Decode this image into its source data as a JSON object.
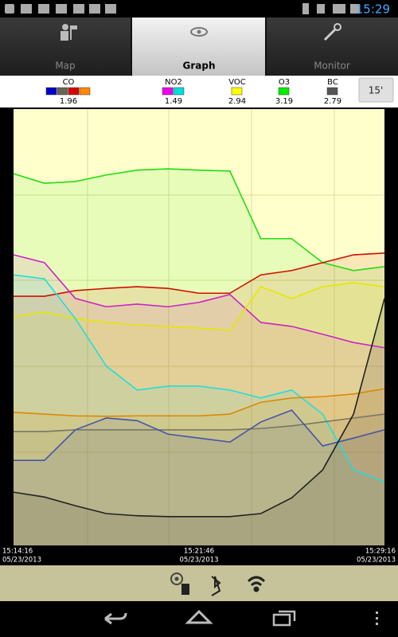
{
  "status_bar": {
    "time": "15:29"
  },
  "tabs": [
    {
      "label": "Map",
      "selected": false
    },
    {
      "label": "Graph",
      "selected": true
    },
    {
      "label": "Monitor",
      "selected": false
    }
  ],
  "legend": [
    {
      "name": "CO",
      "value": 1.96,
      "colors": [
        "#0000cc",
        "#666655",
        "#dd0000",
        "#ff8800"
      ]
    },
    {
      "name": "NO2",
      "value": 1.49,
      "colors": [
        "#ee00ee",
        "#00dddd"
      ]
    },
    {
      "name": "VOC",
      "value": 2.94,
      "colors": [
        "#ffff00"
      ]
    },
    {
      "name": "O3",
      "value": 3.19,
      "colors": [
        "#00ee00"
      ]
    },
    {
      "name": "BC",
      "value": 2.79,
      "colors": [
        "#555555"
      ]
    }
  ],
  "window_button": "15'",
  "chart_data": {
    "type": "line",
    "ylim": [
      0,
      100
    ],
    "x_labels": [
      {
        "time": "15:14:16",
        "date": "05/23/2013"
      },
      {
        "time": "15:21:46",
        "date": "05/23/2013"
      },
      {
        "time": "15:29:16",
        "date": "05/23/2013"
      }
    ],
    "series": [
      {
        "color": "#22dd11",
        "values": [
          85.2,
          83.0,
          83.4,
          84.9,
          86.0,
          86.3,
          86.0,
          85.8,
          70.3,
          70.3,
          64.8,
          63.0,
          63.9
        ]
      },
      {
        "color": "#cc1100",
        "values": [
          57.1,
          57.1,
          58.4,
          58.9,
          59.3,
          58.9,
          57.8,
          57.8,
          62.0,
          63.0,
          64.8,
          66.6,
          67.0
        ]
      },
      {
        "color": "#cc22cc",
        "values": [
          66.6,
          64.8,
          56.6,
          54.7,
          55.3,
          54.7,
          55.7,
          57.5,
          51.1,
          50.2,
          48.4,
          46.5,
          45.3
        ]
      },
      {
        "color": "#e6e600",
        "values": [
          52.4,
          53.5,
          52.0,
          51.1,
          50.5,
          50.2,
          49.8,
          49.3,
          59.3,
          56.6,
          59.3,
          60.2,
          59.3
        ]
      },
      {
        "color": "#22dddd",
        "values": [
          62.0,
          61.1,
          52.0,
          41.1,
          35.6,
          36.5,
          36.5,
          35.6,
          33.8,
          35.6,
          30.1,
          17.3,
          14.6
        ]
      },
      {
        "color": "#dd8800",
        "values": [
          30.5,
          30.1,
          29.7,
          29.6,
          29.7,
          29.7,
          29.7,
          30.1,
          32.8,
          33.8,
          34.1,
          34.7,
          35.9
        ]
      },
      {
        "color": "#777766",
        "values": [
          26.1,
          26.1,
          26.5,
          26.5,
          26.5,
          26.5,
          26.5,
          26.5,
          26.8,
          27.4,
          28.3,
          29.2,
          30.1
        ]
      },
      {
        "color": "#4455aa",
        "values": [
          19.5,
          19.5,
          26.5,
          29.2,
          28.6,
          25.5,
          24.6,
          23.7,
          28.3,
          31.0,
          22.8,
          24.6,
          26.5
        ]
      },
      {
        "color": "#222222",
        "values": [
          12.2,
          11.1,
          9.1,
          7.3,
          6.8,
          6.6,
          6.6,
          6.6,
          7.3,
          10.9,
          17.3,
          30.1,
          56.6
        ]
      }
    ]
  }
}
